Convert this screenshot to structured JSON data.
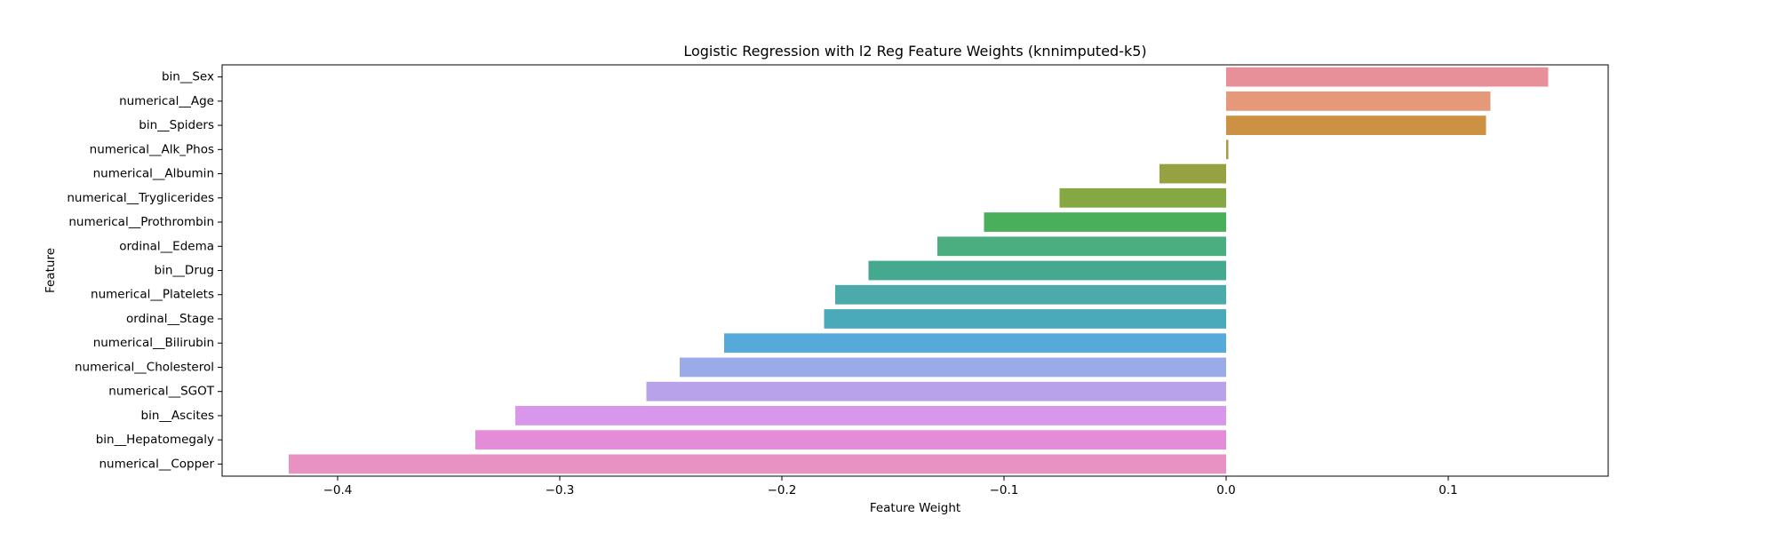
{
  "chart_data": {
    "type": "bar",
    "orientation": "horizontal",
    "title": "Logistic Regression with l2 Reg Feature Weights (knnimputed-k5)",
    "xlabel": "Feature Weight",
    "ylabel": "Feature",
    "xlim": [
      -0.452,
      0.172
    ],
    "xticks": [
      -0.4,
      -0.3,
      -0.2,
      -0.1,
      0.0,
      0.1
    ],
    "xtick_labels": [
      "−0.4",
      "−0.3",
      "−0.2",
      "−0.1",
      "0.0",
      "0.1"
    ],
    "grid": false,
    "legend": "none",
    "categories": [
      "bin__Sex",
      "numerical__Age",
      "bin__Spiders",
      "numerical__Alk_Phos",
      "numerical__Albumin",
      "numerical__Tryglicerides",
      "numerical__Prothrombin",
      "ordinal__Edema",
      "bin__Drug",
      "numerical__Platelets",
      "ordinal__Stage",
      "numerical__Bilirubin",
      "numerical__Cholesterol",
      "numerical__SGOT",
      "bin__Ascites",
      "bin__Hepatomegaly",
      "numerical__Copper"
    ],
    "values": [
      0.145,
      0.119,
      0.117,
      0.001,
      -0.03,
      -0.075,
      -0.109,
      -0.13,
      -0.161,
      -0.176,
      -0.181,
      -0.226,
      -0.246,
      -0.261,
      -0.32,
      -0.338,
      -0.422
    ],
    "colors": [
      "#e8909a",
      "#e5987a",
      "#cc9142",
      "#aa9b42",
      "#96a142",
      "#86a843",
      "#4aaf5a",
      "#4aae80",
      "#45a98f",
      "#4aabaa",
      "#4aaab9",
      "#56aadb",
      "#9babea",
      "#b8a2ea",
      "#d897ea",
      "#e58cd8",
      "#e891c3"
    ]
  }
}
